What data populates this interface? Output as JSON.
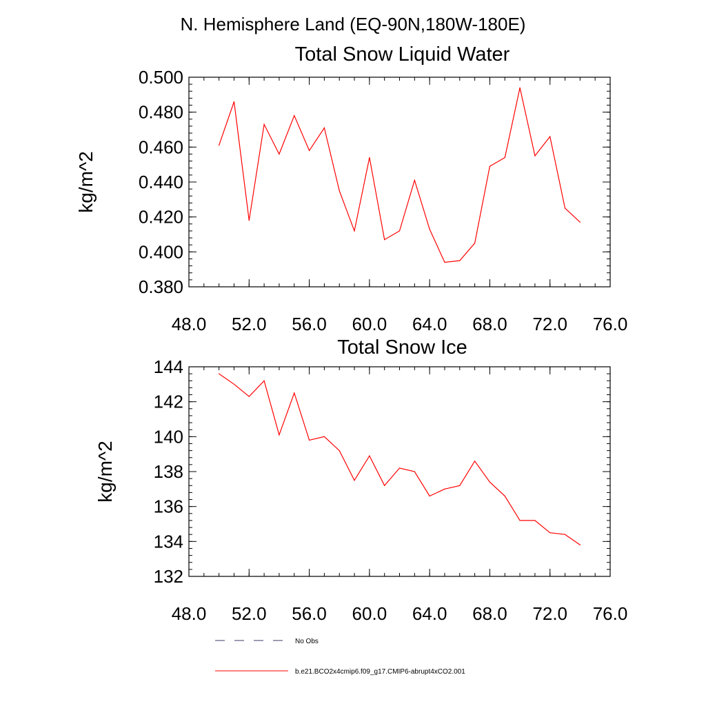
{
  "suptitle": "N. Hemisphere Land (EQ-90N,180W-180E)",
  "chart_data": [
    {
      "type": "line",
      "title": "Total Snow Liquid Water",
      "xlabel": "",
      "ylabel": "kg/m^2",
      "xlim": [
        48,
        76
      ],
      "ylim": [
        0.38,
        0.5
      ],
      "xticks": [
        48,
        52,
        56,
        60,
        64,
        68,
        72,
        76
      ],
      "xtick_labels": [
        "48.0",
        "52.0",
        "56.0",
        "60.0",
        "64.0",
        "68.0",
        "72.0",
        "76.0"
      ],
      "yticks": [
        0.38,
        0.4,
        0.42,
        0.44,
        0.46,
        0.48,
        0.5
      ],
      "ytick_labels": [
        "0.380",
        "0.400",
        "0.420",
        "0.440",
        "0.460",
        "0.480",
        "0.500"
      ],
      "grid": false,
      "series": [
        {
          "name": "b.e21.BCO2x4cmip6.f09_g17.CMIP6-abrupt4xCO2.001",
          "color": "#ff0000",
          "x": [
            50,
            51,
            52,
            53,
            54,
            55,
            56,
            57,
            58,
            59,
            60,
            61,
            62,
            63,
            64,
            65,
            66,
            67,
            68,
            69,
            70,
            71,
            72,
            73,
            74
          ],
          "values": [
            0.461,
            0.486,
            0.418,
            0.473,
            0.456,
            0.478,
            0.458,
            0.471,
            0.435,
            0.412,
            0.454,
            0.407,
            0.412,
            0.441,
            0.413,
            0.394,
            0.395,
            0.405,
            0.449,
            0.454,
            0.494,
            0.455,
            0.466,
            0.425,
            0.417
          ]
        }
      ]
    },
    {
      "type": "line",
      "title": "Total Snow Ice",
      "xlabel": "",
      "ylabel": "kg/m^2",
      "xlim": [
        48,
        76
      ],
      "ylim": [
        132,
        144
      ],
      "xticks": [
        48,
        52,
        56,
        60,
        64,
        68,
        72,
        76
      ],
      "xtick_labels": [
        "48.0",
        "52.0",
        "56.0",
        "60.0",
        "64.0",
        "68.0",
        "72.0",
        "76.0"
      ],
      "yticks": [
        132,
        134,
        136,
        138,
        140,
        142,
        144
      ],
      "ytick_labels": [
        "132",
        "134",
        "136",
        "138",
        "140",
        "142",
        "144"
      ],
      "grid": false,
      "series": [
        {
          "name": "b.e21.BCO2x4cmip6.f09_g17.CMIP6-abrupt4xCO2.001",
          "color": "#ff0000",
          "x": [
            50,
            51,
            52,
            53,
            54,
            55,
            56,
            57,
            58,
            59,
            60,
            61,
            62,
            63,
            64,
            65,
            66,
            67,
            68,
            69,
            70,
            71,
            72,
            73,
            74
          ],
          "values": [
            143.6,
            143.0,
            142.3,
            143.2,
            140.1,
            142.5,
            139.8,
            140.0,
            139.2,
            137.5,
            138.9,
            137.2,
            138.2,
            138.0,
            136.6,
            137.0,
            137.2,
            138.6,
            137.4,
            136.6,
            135.2,
            135.2,
            134.5,
            134.4,
            133.8
          ]
        }
      ]
    }
  ],
  "legend": [
    {
      "label": "No Obs",
      "style": "dashed",
      "color": "#3a3a6a"
    },
    {
      "label": "b.e21.BCO2x4cmip6.f09_g17.CMIP6-abrupt4xCO2.001",
      "style": "solid",
      "color": "#ff0000"
    }
  ]
}
